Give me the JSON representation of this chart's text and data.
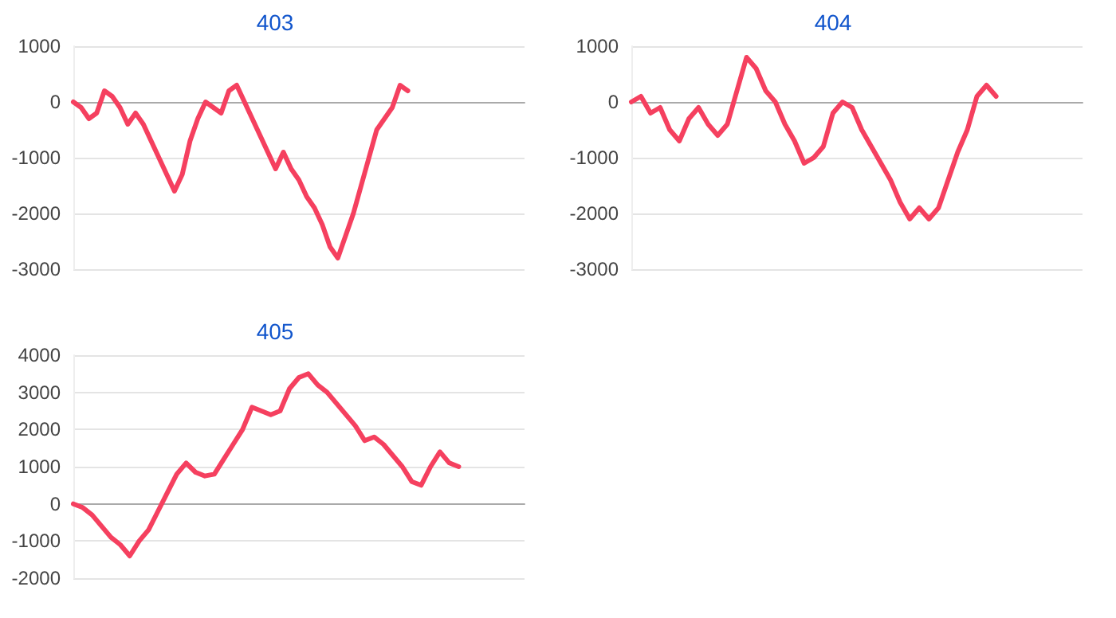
{
  "chart_data": [
    {
      "type": "line",
      "title": "403",
      "grid": "y",
      "tick_labels": "y",
      "ylim": [
        -3000,
        1000
      ],
      "yticks": [
        -3000,
        -2000,
        -1000,
        0,
        1000
      ],
      "categories": [
        null,
        null,
        null,
        null,
        null,
        null,
        null,
        null,
        null,
        null,
        null,
        null,
        null,
        null,
        null,
        null,
        null,
        null,
        null,
        null,
        null,
        null,
        null,
        null,
        null,
        null,
        null,
        null,
        null,
        null,
        null,
        null,
        null,
        null,
        null,
        null,
        null,
        null,
        null,
        null,
        null,
        null,
        null,
        null,
        null,
        null,
        null,
        null,
        null,
        null,
        null,
        null,
        null,
        null,
        null,
        null,
        null,
        null,
        null
      ],
      "series": [
        {
          "color": "#f5405f",
          "values": [
            0,
            -100,
            -300,
            -200,
            200,
            100,
            -100,
            -400,
            -200,
            -400,
            -700,
            -1000,
            -1300,
            -1600,
            -1300,
            -700,
            -300,
            0,
            -100,
            -200,
            200,
            300,
            0,
            -300,
            -600,
            -900,
            -1200,
            -900,
            -1200,
            -1400,
            -1700,
            -1900,
            -2200,
            -2600,
            -2800,
            -2400,
            -2000,
            -1500,
            -1000,
            -500,
            -300,
            -100,
            300,
            200,
            null,
            null,
            null,
            null,
            null,
            null,
            null,
            null,
            null,
            null,
            null,
            null,
            null,
            null,
            null
          ]
        }
      ]
    },
    {
      "type": "line",
      "title": "404",
      "grid": "y",
      "tick_labels": "y",
      "ylim": [
        -3000,
        1000
      ],
      "yticks": [
        -3000,
        -2000,
        -1000,
        0,
        1000
      ],
      "categories": [
        null,
        null,
        null,
        null,
        null,
        null,
        null,
        null,
        null,
        null,
        null,
        null,
        null,
        null,
        null,
        null,
        null,
        null,
        null,
        null,
        null,
        null,
        null,
        null,
        null,
        null,
        null,
        null,
        null,
        null,
        null,
        null,
        null,
        null,
        null,
        null,
        null,
        null,
        null,
        null,
        null,
        null,
        null,
        null,
        null,
        null,
        null,
        null
      ],
      "series": [
        {
          "color": "#f5405f",
          "values": [
            0,
            100,
            -200,
            -100,
            -500,
            -700,
            -300,
            -100,
            -400,
            -600,
            -400,
            200,
            800,
            600,
            200,
            0,
            -400,
            -700,
            -1100,
            -1000,
            -800,
            -200,
            0,
            -100,
            -500,
            -800,
            -1100,
            -1400,
            -1800,
            -2100,
            -1900,
            -2100,
            -1900,
            -1400,
            -900,
            -500,
            100,
            300,
            100,
            null,
            null,
            null,
            null,
            null,
            null,
            null,
            null,
            null
          ]
        }
      ]
    },
    {
      "type": "line",
      "title": "405",
      "grid": "y",
      "tick_labels": "y",
      "ylim": [
        -2000,
        4000
      ],
      "yticks": [
        -2000,
        -1000,
        0,
        1000,
        2000,
        3000,
        4000
      ],
      "categories": [
        null,
        null,
        null,
        null,
        null,
        null,
        null,
        null,
        null,
        null,
        null,
        null,
        null,
        null,
        null,
        null,
        null,
        null,
        null,
        null,
        null,
        null,
        null,
        null,
        null,
        null,
        null,
        null,
        null,
        null,
        null,
        null,
        null,
        null,
        null,
        null,
        null,
        null,
        null,
        null,
        null,
        null,
        null,
        null,
        null,
        null,
        null,
        null,
        null
      ],
      "series": [
        {
          "color": "#f5405f",
          "values": [
            0,
            -100,
            -300,
            -600,
            -900,
            -1100,
            -1400,
            -1000,
            -700,
            -200,
            300,
            800,
            1100,
            850,
            750,
            800,
            1200,
            1600,
            2000,
            2600,
            2500,
            2400,
            2500,
            3100,
            3400,
            3500,
            3200,
            3000,
            2700,
            2400,
            2100,
            1700,
            1800,
            1600,
            1300,
            1000,
            600,
            500,
            1000,
            1400,
            1100,
            1000,
            null,
            null,
            null,
            null,
            null,
            null,
            null
          ]
        }
      ]
    }
  ]
}
